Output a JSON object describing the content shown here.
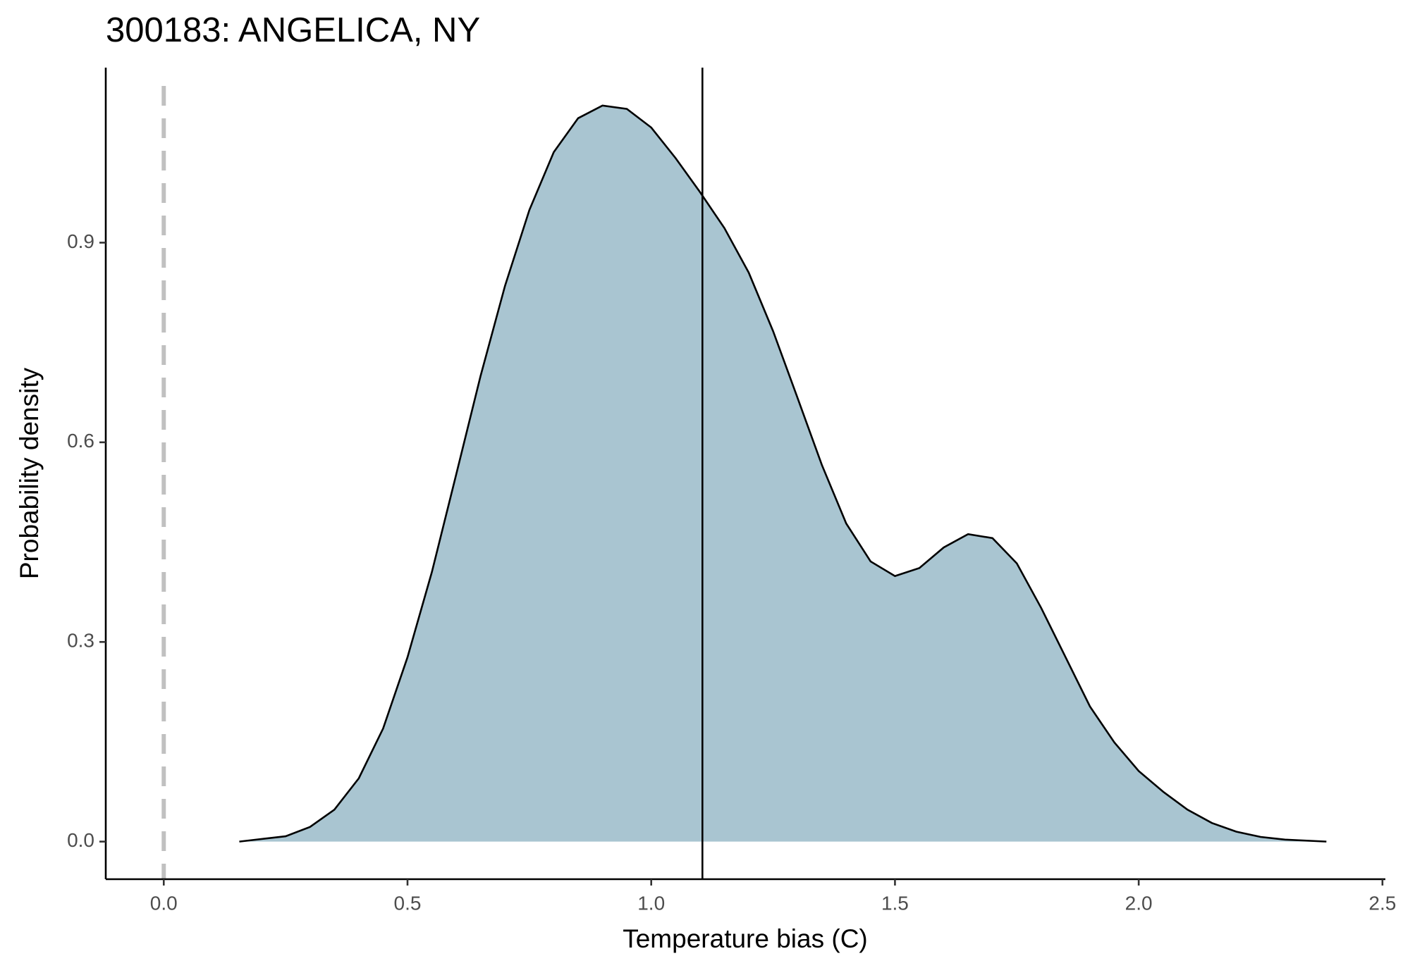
{
  "chart_data": {
    "type": "area",
    "title": "300183: ANGELICA, NY",
    "xlabel": "Temperature bias (C)",
    "ylabel": "Probability density",
    "x": [
      0.155,
      0.25,
      0.3,
      0.35,
      0.4,
      0.45,
      0.5,
      0.55,
      0.6,
      0.65,
      0.7,
      0.75,
      0.8,
      0.85,
      0.9,
      0.95,
      1.0,
      1.05,
      1.1,
      1.15,
      1.2,
      1.25,
      1.3,
      1.35,
      1.4,
      1.45,
      1.5,
      1.55,
      1.6,
      1.65,
      1.7,
      1.75,
      1.8,
      1.85,
      1.9,
      1.95,
      2.0,
      2.05,
      2.1,
      2.15,
      2.2,
      2.25,
      2.3,
      2.385
    ],
    "values": [
      0.0,
      0.008,
      0.022,
      0.048,
      0.095,
      0.17,
      0.277,
      0.405,
      0.552,
      0.7,
      0.835,
      0.949,
      1.036,
      1.087,
      1.106,
      1.101,
      1.073,
      1.027,
      0.976,
      0.922,
      0.855,
      0.767,
      0.667,
      0.566,
      0.478,
      0.421,
      0.399,
      0.411,
      0.442,
      0.462,
      0.456,
      0.418,
      0.351,
      0.277,
      0.203,
      0.149,
      0.106,
      0.075,
      0.048,
      0.028,
      0.015,
      0.007,
      0.003,
      0.0
    ],
    "color": "#a9c5d1",
    "vline": 1.105,
    "reference_line": 0,
    "reference_color": "#c0c0c0",
    "xlim": [
      -0.119,
      2.506
    ],
    "ylim": [
      -0.0565,
      1.163
    ],
    "xticks": [
      {
        "value": 0,
        "label": "0.0"
      },
      {
        "value": 0.5,
        "label": "0.5"
      },
      {
        "value": 1,
        "label": "1.0"
      },
      {
        "value": 1.5,
        "label": "1.5"
      },
      {
        "value": 2,
        "label": "2.0"
      },
      {
        "value": 2.5,
        "label": "2.5"
      }
    ],
    "yticks": [
      {
        "value": 0,
        "label": "0.0"
      },
      {
        "value": 0.3,
        "label": "0.3"
      },
      {
        "value": 0.6,
        "label": "0.6"
      },
      {
        "value": 0.9,
        "label": "0.9"
      }
    ]
  }
}
